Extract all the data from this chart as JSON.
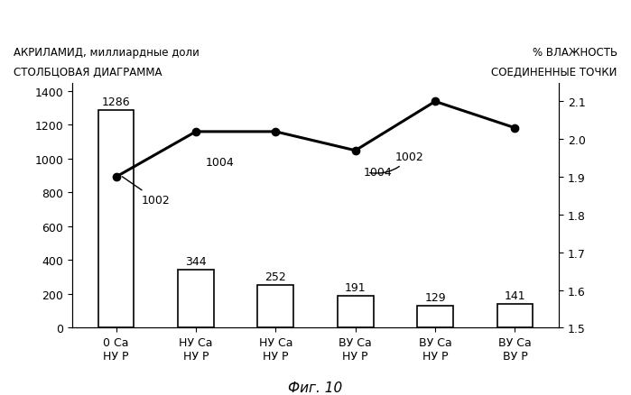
{
  "categories": [
    "0 Ca\nНУ Р",
    "НУ Ca\nНУ Р",
    "НУ Ca\nНУ Р",
    "ВУ Ca\nНУ Р",
    "ВУ Ca\nНУ Р",
    "ВУ Ca\nВУ Р"
  ],
  "bar_values": [
    1286,
    344,
    252,
    191,
    129,
    141
  ],
  "bar_labels": [
    "1286",
    "344",
    "252",
    "191",
    "129",
    "141"
  ],
  "line_values": [
    1.9,
    2.02,
    2.02,
    1.97,
    2.1,
    2.03
  ],
  "bar_color": "#ffffff",
  "bar_edgecolor": "#000000",
  "line_color": "#000000",
  "marker_style": "o",
  "marker_size": 6,
  "marker_facecolor": "#000000",
  "left_title_line1": "АКРИЛАМИД, миллиардные доли",
  "left_title_line2": "СТОЛБЦОВАЯ ДИАГРАММА",
  "right_title_line1": "% ВЛАЖНОСТЬ",
  "right_title_line2": "СОЕДИНЕННЫЕ ТОЧКИ",
  "left_ylim": [
    0,
    1450
  ],
  "left_yticks": [
    0,
    200,
    400,
    600,
    800,
    1000,
    1200,
    1400
  ],
  "right_ylim": [
    1.5,
    2.15
  ],
  "right_yticks": [
    1.5,
    1.6,
    1.7,
    1.8,
    1.9,
    2.0,
    2.1
  ],
  "xlabel": "Фиг. 10",
  "figure_width": 6.99,
  "figure_height": 4.39,
  "dpi": 100,
  "bg_color": "#ffffff",
  "font_size_title": 8.5,
  "font_size_ticks": 9,
  "font_size_xlabel": 11,
  "font_size_bar_label": 9,
  "font_size_annot": 9,
  "line_linewidth": 2.2,
  "bar_width": 0.45,
  "xlim_left": -0.55,
  "xlim_right": 5.55
}
